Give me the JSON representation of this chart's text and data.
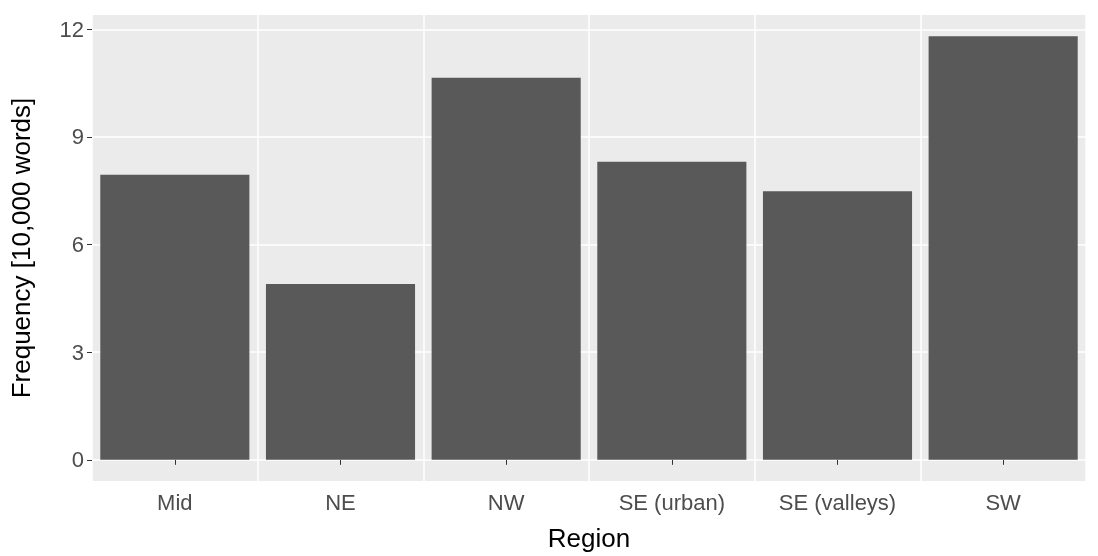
{
  "chart_data": {
    "type": "bar",
    "xlabel": "Region",
    "ylabel": "Frequency [10,000 words]",
    "categories": [
      "Mid",
      "NE",
      "NW",
      "SE (urban)",
      "SE (valleys)",
      "SW"
    ],
    "values": [
      7.95,
      4.9,
      10.65,
      8.31,
      7.49,
      11.81
    ],
    "color": "#595959",
    "ylim": [
      -0.59,
      12.4
    ],
    "yticks": [
      0,
      3,
      6,
      9,
      12
    ],
    "grid": true
  }
}
